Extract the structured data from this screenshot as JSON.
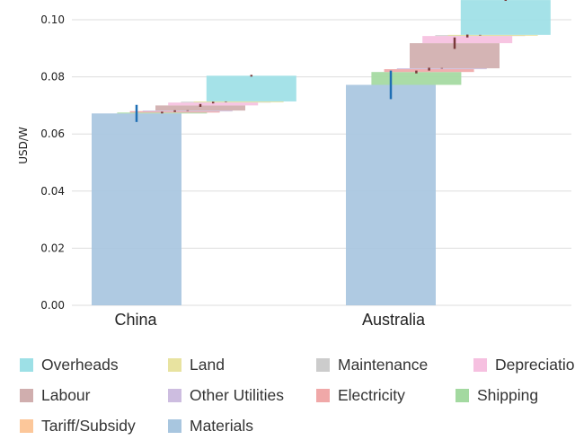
{
  "chart_data": {
    "type": "bar",
    "subtype": "stacked-waterfall",
    "title": "",
    "xlabel": "",
    "ylabel": "USD/W",
    "ylim": [
      0,
      0.11
    ],
    "yticks": [
      "0.00",
      "0.02",
      "0.04",
      "0.06",
      "0.08",
      "0.10"
    ],
    "categories": [
      "China",
      "Australia"
    ],
    "grid": "horizontal",
    "legend_position": "bottom",
    "series": [
      {
        "name": "Materials",
        "color": "#a8c6df",
        "values": [
          0.0672,
          0.0772
        ],
        "error": [
          0.003,
          0.005
        ]
      },
      {
        "name": "Tariff/Subsidy",
        "color": "#fcc79a",
        "values": [
          0.0,
          0.0
        ],
        "error": [
          0.0,
          0.0
        ]
      },
      {
        "name": "Shipping",
        "color": "#a3d9a0",
        "values": [
          0.0003,
          0.0045
        ],
        "error": [
          0.0003,
          0.0005
        ]
      },
      {
        "name": "Electricity",
        "color": "#f0a8a8",
        "values": [
          0.0005,
          0.001
        ],
        "error": [
          0.0003,
          0.0005
        ]
      },
      {
        "name": "Other Utilities",
        "color": "#cdbde0",
        "values": [
          0.0002,
          0.0003
        ],
        "error": [
          0.0001,
          0.0001
        ]
      },
      {
        "name": "Labour",
        "color": "#d0aeae",
        "values": [
          0.0018,
          0.0088
        ],
        "error": [
          0.0005,
          0.002
        ]
      },
      {
        "name": "Depreciation",
        "color": "#f6c0e0",
        "values": [
          0.001,
          0.0025
        ],
        "error": [
          0.0003,
          0.0005
        ]
      },
      {
        "name": "Maintenance",
        "color": "#cccccc",
        "values": [
          0.0003,
          0.0003
        ],
        "error": [
          0.0001,
          0.0001
        ]
      },
      {
        "name": "Land",
        "color": "#e8e3a0",
        "values": [
          0.0001,
          0.0001
        ],
        "error": [
          0.0,
          0.0
        ]
      },
      {
        "name": "Overheads",
        "color": "#9de0e6",
        "values": [
          0.009,
          0.0122
        ],
        "error": [
          0.0003,
          0.0003
        ]
      }
    ]
  },
  "legend": {
    "items": [
      {
        "label": "Overheads",
        "color": "#9de0e6"
      },
      {
        "label": "Land",
        "color": "#e8e3a0"
      },
      {
        "label": "Maintenance",
        "color": "#cccccc"
      },
      {
        "label": "Depreciation",
        "color": "#f6c0e0"
      },
      {
        "label": "Labour",
        "color": "#d0aeae"
      },
      {
        "label": "Other Utilities",
        "color": "#cdbde0"
      },
      {
        "label": "Electricity",
        "color": "#f0a8a8"
      },
      {
        "label": "Shipping",
        "color": "#a3d9a0"
      },
      {
        "label": "Tariff/Subsidy",
        "color": "#fcc79a"
      },
      {
        "label": "Materials",
        "color": "#a8c6df"
      }
    ]
  },
  "colors": {
    "grid": "#dddddd",
    "error_bar_materials": "#1f6fb4",
    "error_bar_other": "#7a3a3a",
    "text": "#222222"
  }
}
